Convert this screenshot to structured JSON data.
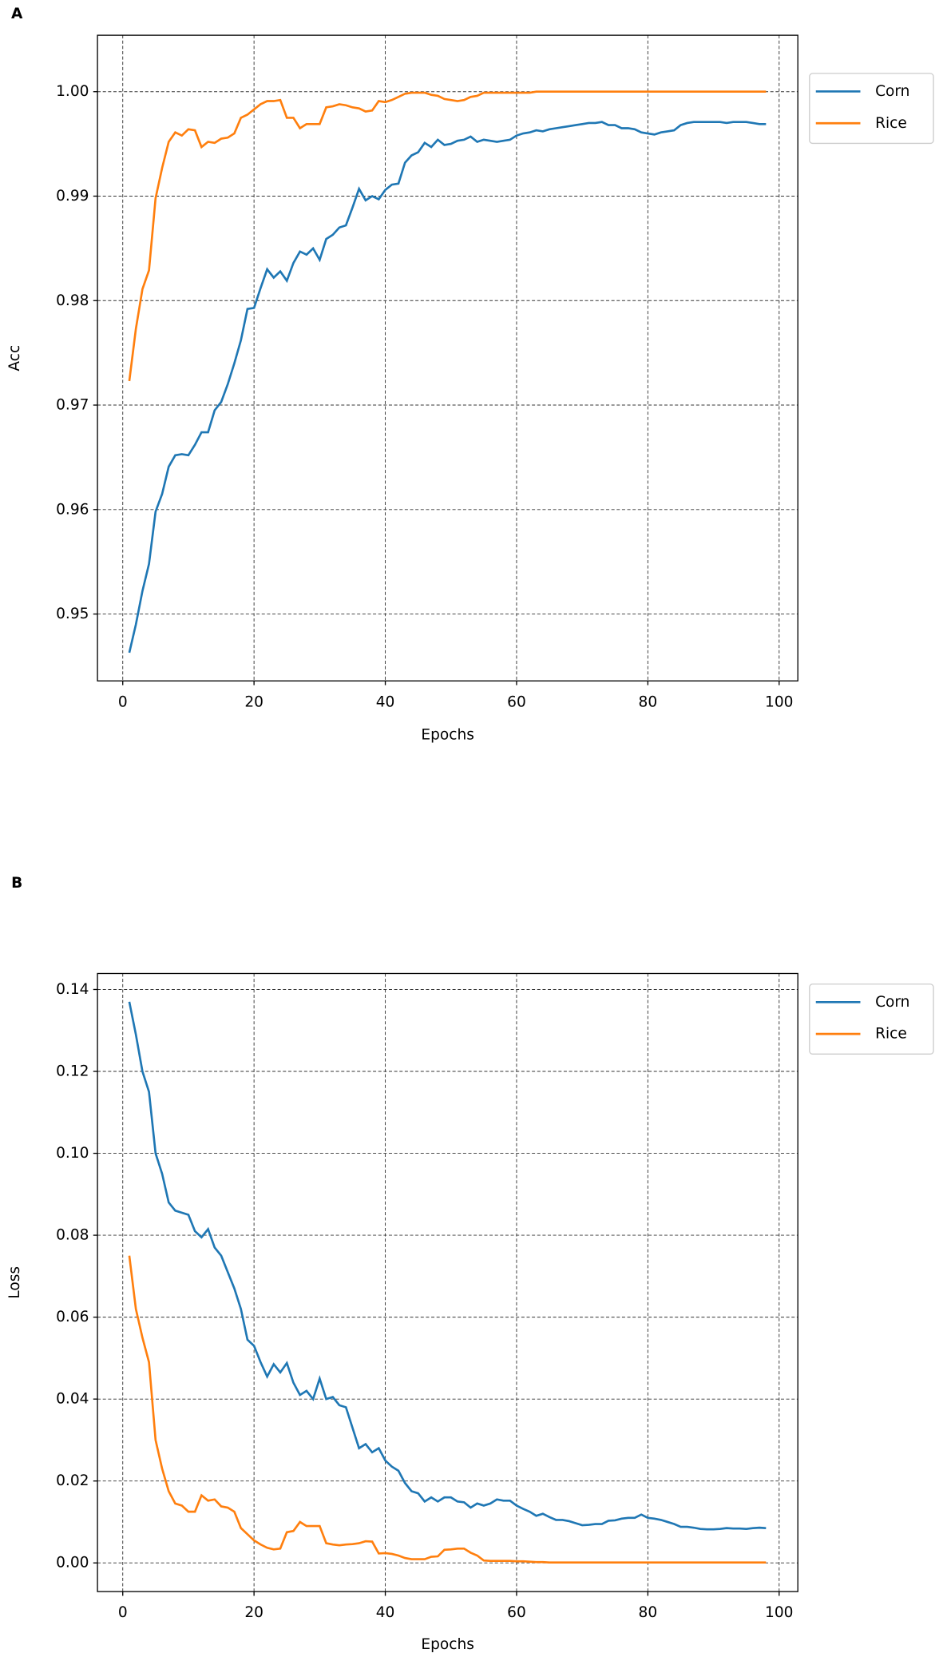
{
  "chart_data": [
    {
      "type": "line",
      "panel_label": "A",
      "xlabel": "Epochs",
      "ylabel": "Acc",
      "grid": true,
      "x": [
        1,
        2,
        3,
        4,
        5,
        6,
        7,
        8,
        9,
        10,
        11,
        12,
        13,
        14,
        15,
        16,
        17,
        18,
        19,
        20,
        21,
        22,
        23,
        24,
        25,
        26,
        27,
        28,
        29,
        30,
        31,
        32,
        33,
        34,
        35,
        36,
        37,
        38,
        39,
        40,
        41,
        42,
        43,
        44,
        45,
        46,
        47,
        48,
        49,
        50,
        51,
        52,
        53,
        54,
        55,
        56,
        57,
        58,
        59,
        60,
        61,
        62,
        63,
        64,
        65,
        66,
        67,
        68,
        69,
        70,
        71,
        72,
        73,
        74,
        75,
        76,
        77,
        78,
        79,
        80,
        81,
        82,
        83,
        84,
        85,
        86,
        87,
        88,
        89,
        90,
        91,
        92,
        93,
        94,
        95,
        96,
        97,
        98
      ],
      "xlim": [
        -3.85,
        102.85
      ],
      "xticks": [
        0,
        20,
        40,
        60,
        80,
        100
      ],
      "ylim": [
        0.9436,
        1.0054
      ],
      "yticks": [
        0.95,
        0.96,
        0.97,
        0.98,
        0.99,
        {
          "value": 1,
          "label": "1.00"
        }
      ],
      "series": [
        {
          "name": "Corn",
          "color": "#1f77b4",
          "values": [
            0.9463,
            0.949,
            0.9522,
            0.9548,
            0.9598,
            0.9615,
            0.9641,
            0.9652,
            0.9653,
            0.9652,
            0.9662,
            0.9674,
            0.9674,
            0.9695,
            0.9703,
            0.972,
            0.974,
            0.9762,
            0.9792,
            0.9793,
            0.9812,
            0.983,
            0.9822,
            0.9828,
            0.9819,
            0.9836,
            0.9847,
            0.9844,
            0.985,
            0.9839,
            0.9859,
            0.9863,
            0.987,
            0.9872,
            0.9889,
            0.9907,
            0.9896,
            0.99,
            0.9897,
            0.9906,
            0.9911,
            0.9912,
            0.9932,
            0.9939,
            0.9942,
            0.9951,
            0.9947,
            0.9954,
            0.9949,
            0.995,
            0.9953,
            0.9954,
            0.9957,
            0.9952,
            0.9954,
            0.9953,
            0.9952,
            0.9953,
            0.9954,
            0.9958,
            0.996,
            0.9961,
            0.9963,
            0.9962,
            0.9964,
            0.9965,
            0.9966,
            0.9967,
            0.9968,
            0.9969,
            0.997,
            0.997,
            0.9971,
            0.9968,
            0.9968,
            0.9965,
            0.9965,
            0.9964,
            0.9961,
            0.996,
            0.9959,
            0.9961,
            0.9962,
            0.9963,
            0.9968,
            0.997,
            0.9971,
            0.9971,
            0.9971,
            0.9971,
            0.9971,
            0.997,
            0.9971,
            0.9971,
            0.9971,
            0.997,
            0.9969,
            0.9969
          ]
        },
        {
          "name": "Rice",
          "color": "#ff7f0e",
          "values": [
            0.9723,
            0.9773,
            0.9811,
            0.9829,
            0.9898,
            0.9927,
            0.9952,
            0.9961,
            0.9958,
            0.9964,
            0.9963,
            0.9947,
            0.9952,
            0.9951,
            0.9955,
            0.9956,
            0.996,
            0.9975,
            0.9978,
            0.9983,
            0.9988,
            0.9991,
            0.9991,
            0.9992,
            0.9975,
            0.9975,
            0.9965,
            0.9969,
            0.9969,
            0.9969,
            0.9985,
            0.9986,
            0.9988,
            0.9987,
            0.9985,
            0.9984,
            0.9981,
            0.9982,
            0.9991,
            0.999,
            0.9992,
            0.9995,
            0.9998,
            0.9999,
            0.9999,
            0.9999,
            0.9997,
            0.9996,
            0.9993,
            0.9992,
            0.9991,
            0.9992,
            0.9995,
            0.9996,
            0.9999,
            0.9999,
            0.9999,
            0.9999,
            0.9999,
            0.9999,
            0.9999,
            0.9999,
            1,
            1,
            1,
            1,
            1,
            1,
            1,
            1,
            1,
            1,
            1,
            1,
            1,
            1,
            1,
            1,
            1,
            1,
            1,
            1,
            1,
            1,
            1,
            1,
            1,
            1,
            1,
            1,
            1,
            1,
            1,
            1,
            1,
            1,
            1,
            1
          ]
        }
      ]
    },
    {
      "type": "line",
      "panel_label": "B",
      "xlabel": "Epochs",
      "ylabel": "Loss",
      "grid": true,
      "x": [
        1,
        2,
        3,
        4,
        5,
        6,
        7,
        8,
        9,
        10,
        11,
        12,
        13,
        14,
        15,
        16,
        17,
        18,
        19,
        20,
        21,
        22,
        23,
        24,
        25,
        26,
        27,
        28,
        29,
        30,
        31,
        32,
        33,
        34,
        35,
        36,
        37,
        38,
        39,
        40,
        41,
        42,
        43,
        44,
        45,
        46,
        47,
        48,
        49,
        50,
        51,
        52,
        53,
        54,
        55,
        56,
        57,
        58,
        59,
        60,
        61,
        62,
        63,
        64,
        65,
        66,
        67,
        68,
        69,
        70,
        71,
        72,
        73,
        74,
        75,
        76,
        77,
        78,
        79,
        80,
        81,
        82,
        83,
        84,
        85,
        86,
        87,
        88,
        89,
        90,
        91,
        92,
        93,
        94,
        95,
        96,
        97,
        98
      ],
      "xlim": [
        -3.85,
        102.85
      ],
      "xticks": [
        0,
        20,
        40,
        60,
        80,
        100
      ],
      "ylim": [
        -0.007,
        0.1439
      ],
      "yticks": [
        {
          "value": 0,
          "label": "0.00"
        },
        0.02,
        0.04,
        0.06,
        0.08,
        {
          "value": 0.1,
          "label": "0.10"
        },
        0.12,
        0.14
      ],
      "series": [
        {
          "name": "Corn",
          "color": "#1f77b4",
          "values": [
            0.137,
            0.129,
            0.12,
            0.115,
            0.1,
            0.095,
            0.088,
            0.086,
            0.0855,
            0.085,
            0.081,
            0.0795,
            0.0815,
            0.077,
            0.075,
            0.071,
            0.067,
            0.062,
            0.0545,
            0.053,
            0.049,
            0.0455,
            0.0485,
            0.0465,
            0.0488,
            0.044,
            0.041,
            0.042,
            0.04,
            0.045,
            0.04,
            0.0405,
            0.0385,
            0.038,
            0.033,
            0.028,
            0.029,
            0.027,
            0.028,
            0.025,
            0.0235,
            0.0225,
            0.0195,
            0.0175,
            0.017,
            0.015,
            0.016,
            0.015,
            0.016,
            0.016,
            0.015,
            0.0148,
            0.0135,
            0.0145,
            0.014,
            0.0145,
            0.0155,
            0.0152,
            0.0152,
            0.014,
            0.0132,
            0.0125,
            0.0115,
            0.012,
            0.0112,
            0.0105,
            0.0105,
            0.0102,
            0.0097,
            0.0092,
            0.0093,
            0.0095,
            0.0095,
            0.0103,
            0.0104,
            0.0108,
            0.011,
            0.011,
            0.0118,
            0.011,
            0.0108,
            0.0105,
            0.01,
            0.0095,
            0.0088,
            0.0088,
            0.0086,
            0.0083,
            0.0082,
            0.0082,
            0.0083,
            0.0085,
            0.0084,
            0.0084,
            0.0083,
            0.0085,
            0.0086,
            0.0085
          ]
        },
        {
          "name": "Rice",
          "color": "#ff7f0e",
          "values": [
            0.075,
            0.062,
            0.055,
            0.049,
            0.03,
            0.023,
            0.0175,
            0.0145,
            0.014,
            0.0125,
            0.0125,
            0.0165,
            0.0152,
            0.0155,
            0.0138,
            0.0135,
            0.0125,
            0.0085,
            0.007,
            0.0055,
            0.0045,
            0.0037,
            0.0033,
            0.0035,
            0.0075,
            0.0078,
            0.01,
            0.009,
            0.009,
            0.009,
            0.0048,
            0.0045,
            0.0043,
            0.0045,
            0.0046,
            0.0048,
            0.0053,
            0.0052,
            0.0023,
            0.0024,
            0.0022,
            0.0018,
            0.0012,
            0.0009,
            0.0009,
            0.0009,
            0.0015,
            0.0016,
            0.0032,
            0.0033,
            0.0035,
            0.0035,
            0.0025,
            0.0018,
            0.0006,
            0.0005,
            0.0005,
            0.0005,
            0.0005,
            0.0004,
            0.0004,
            0.0003,
            0.0002,
            0.0002,
            0.0001,
            0.0001,
            0.0001,
            0.0001,
            0.0001,
            0.0001,
            0.0001,
            0.0001,
            0.0001,
            0.0001,
            0.0001,
            0.0001,
            0.0001,
            0.0001,
            0.0001,
            0.0001,
            0.0001,
            0.0001,
            0.0001,
            0.0001,
            0.0001,
            0.0001,
            0.0001,
            0.0001,
            0.0001,
            0.0001,
            0.0001,
            0.0001,
            0.0001,
            0.0001,
            0.0001,
            0.0001,
            0.0001,
            0.0001
          ]
        }
      ]
    }
  ]
}
